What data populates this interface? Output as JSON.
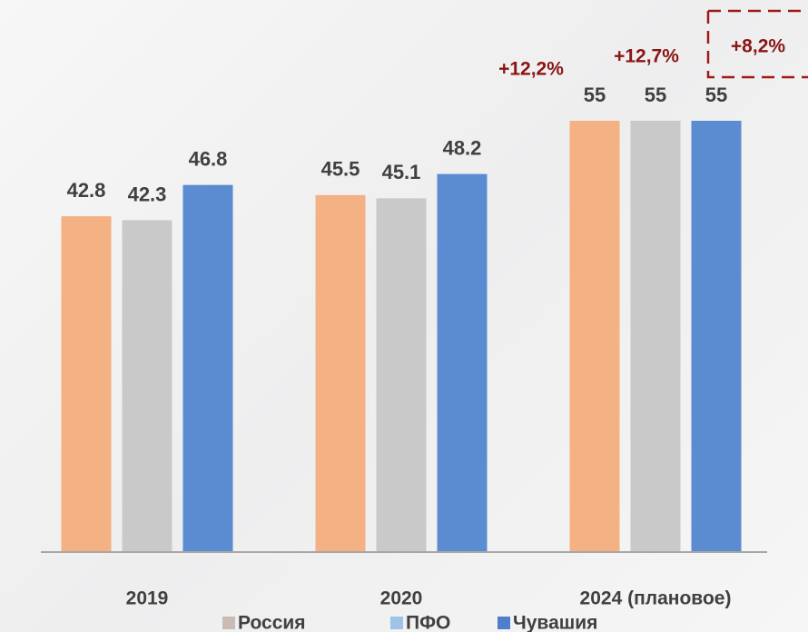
{
  "chart_data": {
    "type": "bar",
    "categories": [
      "2019",
      "2020",
      "2024 (плановое)"
    ],
    "series": [
      {
        "name": "Россия",
        "color": "#f4b183",
        "legend_color": "#c9bcb4",
        "values": [
          42.8,
          45.5,
          55
        ]
      },
      {
        "name": "ПФО",
        "color": "#c9c9c9",
        "legend_color": "#9dc3e6",
        "values": [
          42.3,
          45.1,
          55
        ]
      },
      {
        "name": "Чувашия",
        "color": "#5b8bd0",
        "legend_color": "#4f7fcc",
        "values": [
          46.8,
          48.2,
          55
        ]
      }
    ],
    "annotations": [
      "+12,2%",
      "+12,7%",
      "+8,2%"
    ]
  }
}
